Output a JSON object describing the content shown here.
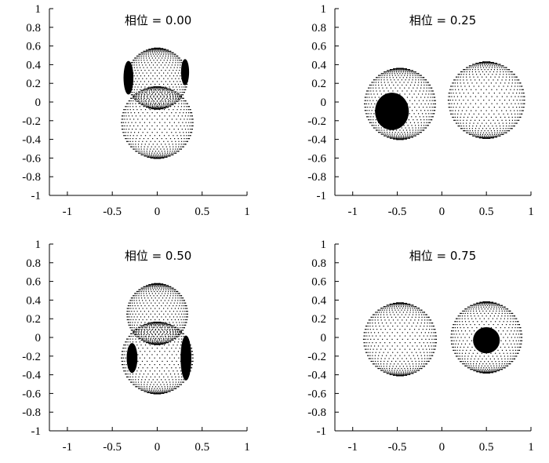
{
  "chart_data": [
    {
      "type": "scatter",
      "title": "相位 = 0.00",
      "phase": 0.0,
      "xlim": [
        -1.2,
        1.0
      ],
      "ylim": [
        -1.0,
        1.0
      ],
      "xticks": [
        "-1",
        "-0.5",
        "0",
        "0.5",
        "1"
      ],
      "xtick_values": [
        -1,
        -0.5,
        0,
        0.5,
        1
      ],
      "yticks": [
        "1",
        "0.8",
        "0.6",
        "0.4",
        "0.2",
        "0",
        "-0.2",
        "-0.4",
        "-0.6",
        "-0.8",
        "-1"
      ],
      "ytick_values": [
        1,
        0.8,
        0.6,
        0.4,
        0.2,
        0,
        -0.2,
        -0.4,
        -0.6,
        -0.8,
        -1
      ],
      "grid": false,
      "point_color": "#000000",
      "bodies": [
        {
          "cx": 0.0,
          "cy": 0.25,
          "r": 0.34
        },
        {
          "cx": 0.0,
          "cy": -0.22,
          "r": 0.4
        }
      ],
      "spots": [
        {
          "cx": -0.32,
          "cy": 0.26,
          "rx": 0.055,
          "ry": 0.18
        },
        {
          "cx": 0.31,
          "cy": 0.32,
          "rx": 0.045,
          "ry": 0.14
        }
      ]
    },
    {
      "type": "scatter",
      "title": "相位 = 0.25",
      "phase": 0.25,
      "xlim": [
        -1.2,
        1.0
      ],
      "ylim": [
        -1.0,
        1.0
      ],
      "xticks": [
        "-1",
        "-0.5",
        "0",
        "0.5",
        "1"
      ],
      "xtick_values": [
        -1,
        -0.5,
        0,
        0.5,
        1
      ],
      "yticks": [
        "1",
        "0.8",
        "0.6",
        "0.4",
        "0.2",
        "0",
        "-0.2",
        "-0.4",
        "-0.6",
        "-0.8",
        "-1"
      ],
      "ytick_values": [
        1,
        0.8,
        0.6,
        0.4,
        0.2,
        0,
        -0.2,
        -0.4,
        -0.6,
        -0.8,
        -1
      ],
      "grid": false,
      "point_color": "#000000",
      "bodies": [
        {
          "cx": -0.47,
          "cy": -0.02,
          "r": 0.4
        },
        {
          "cx": 0.5,
          "cy": 0.02,
          "r": 0.43
        }
      ],
      "spots": [
        {
          "cx": -0.56,
          "cy": -0.1,
          "rx": 0.19,
          "ry": 0.2
        }
      ]
    },
    {
      "type": "scatter",
      "title": "相位 = 0.50",
      "phase": 0.5,
      "xlim": [
        -1.2,
        1.0
      ],
      "ylim": [
        -1.0,
        1.0
      ],
      "xticks": [
        "-1",
        "-0.5",
        "0",
        "0.5",
        "1"
      ],
      "xtick_values": [
        -1,
        -0.5,
        0,
        0.5,
        1
      ],
      "yticks": [
        "1",
        "0.8",
        "0.6",
        "0.4",
        "0.2",
        "0",
        "-0.2",
        "-0.4",
        "-0.6",
        "-0.8",
        "-1"
      ],
      "ytick_values": [
        1,
        0.8,
        0.6,
        0.4,
        0.2,
        0,
        -0.2,
        -0.4,
        -0.6,
        -0.8,
        -1
      ],
      "grid": false,
      "point_color": "#000000",
      "bodies": [
        {
          "cx": 0.0,
          "cy": 0.25,
          "r": 0.34
        },
        {
          "cx": 0.0,
          "cy": -0.22,
          "r": 0.4
        }
      ],
      "spots": [
        {
          "cx": -0.28,
          "cy": -0.22,
          "rx": 0.06,
          "ry": 0.16
        },
        {
          "cx": 0.32,
          "cy": -0.22,
          "rx": 0.06,
          "ry": 0.24
        }
      ]
    },
    {
      "type": "scatter",
      "title": "相位 = 0.75",
      "phase": 0.75,
      "xlim": [
        -1.2,
        1.0
      ],
      "ylim": [
        -1.0,
        1.0
      ],
      "xticks": [
        "-1",
        "-0.5",
        "0",
        "0.5",
        "1"
      ],
      "xtick_values": [
        -1,
        -0.5,
        0,
        0.5,
        1
      ],
      "yticks": [
        "1",
        "0.8",
        "0.6",
        "0.4",
        "0.2",
        "0",
        "-0.2",
        "-0.4",
        "-0.6",
        "-0.8",
        "-1"
      ],
      "ytick_values": [
        1,
        0.8,
        0.6,
        0.4,
        0.2,
        0,
        -0.2,
        -0.4,
        -0.6,
        -0.8,
        -1
      ],
      "grid": false,
      "point_color": "#000000",
      "bodies": [
        {
          "cx": -0.47,
          "cy": -0.02,
          "r": 0.41
        },
        {
          "cx": 0.5,
          "cy": 0.0,
          "r": 0.4
        }
      ],
      "spots": [
        {
          "cx": 0.5,
          "cy": -0.03,
          "rx": 0.15,
          "ry": 0.14
        }
      ]
    }
  ]
}
